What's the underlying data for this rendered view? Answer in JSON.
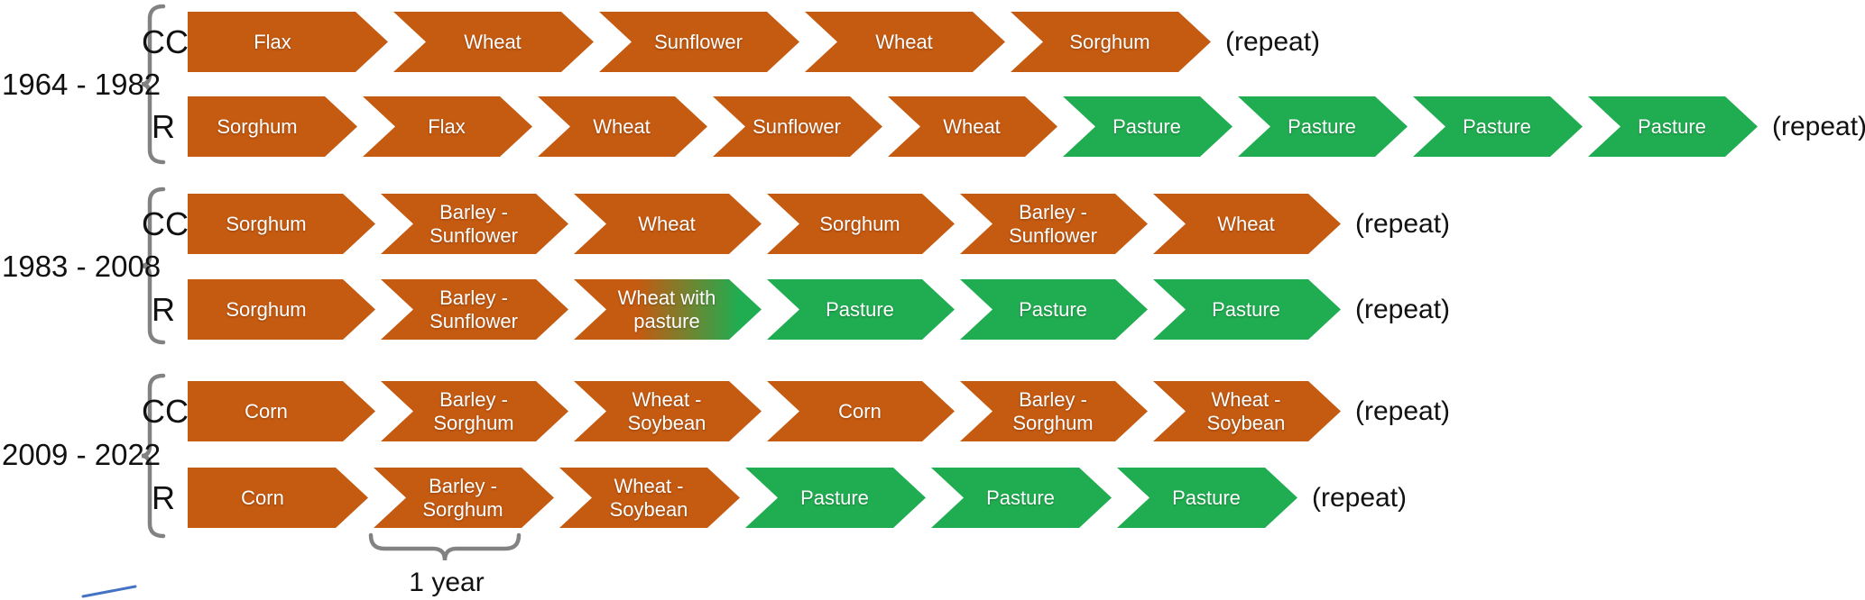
{
  "colors": {
    "crop": "#C55A11",
    "pasture": "#20AD51",
    "bracket": "#828282",
    "text_on_arrow": "#FFFFFF",
    "label_text": "#111111",
    "stray_mark": "#4472C4"
  },
  "annotation": {
    "label": "1 year"
  },
  "groups": [
    {
      "period": "1964 - 1982",
      "rows": [
        {
          "label": "CC",
          "repeat": "(repeat)",
          "segments": [
            {
              "text": "Flax",
              "type": "crop"
            },
            {
              "text": "Wheat",
              "type": "crop"
            },
            {
              "text": "Sunflower",
              "type": "crop"
            },
            {
              "text": "Wheat",
              "type": "crop"
            },
            {
              "text": "Sorghum",
              "type": "crop"
            }
          ]
        },
        {
          "label": "R",
          "repeat": "(repeat)",
          "segments": [
            {
              "text": "Sorghum",
              "type": "crop"
            },
            {
              "text": "Flax",
              "type": "crop"
            },
            {
              "text": "Wheat",
              "type": "crop"
            },
            {
              "text": "Sunflower",
              "type": "crop"
            },
            {
              "text": "Wheat",
              "type": "crop"
            },
            {
              "text": "Pasture",
              "type": "pasture"
            },
            {
              "text": "Pasture",
              "type": "pasture"
            },
            {
              "text": "Pasture",
              "type": "pasture"
            },
            {
              "text": "Pasture",
              "type": "pasture"
            }
          ]
        }
      ]
    },
    {
      "period": "1983 - 2008",
      "rows": [
        {
          "label": "CC",
          "repeat": "(repeat)",
          "segments": [
            {
              "text": "Sorghum",
              "type": "crop"
            },
            {
              "text": "Barley - Sunflower",
              "type": "crop"
            },
            {
              "text": "Wheat",
              "type": "crop"
            },
            {
              "text": "Sorghum",
              "type": "crop"
            },
            {
              "text": "Barley - Sunflower",
              "type": "crop"
            },
            {
              "text": "Wheat",
              "type": "crop"
            }
          ]
        },
        {
          "label": "R",
          "repeat": "(repeat)",
          "segments": [
            {
              "text": "Sorghum",
              "type": "crop"
            },
            {
              "text": "Barley - Sunflower",
              "type": "crop"
            },
            {
              "text": "Wheat with pasture",
              "type": "transition"
            },
            {
              "text": "Pasture",
              "type": "pasture"
            },
            {
              "text": "Pasture",
              "type": "pasture"
            },
            {
              "text": "Pasture",
              "type": "pasture"
            }
          ]
        }
      ]
    },
    {
      "period": "2009 - 2022",
      "rows": [
        {
          "label": "CC",
          "repeat": "(repeat)",
          "segments": [
            {
              "text": "Corn",
              "type": "crop"
            },
            {
              "text": "Barley - Sorghum",
              "type": "crop"
            },
            {
              "text": "Wheat - Soybean",
              "type": "crop"
            },
            {
              "text": "Corn",
              "type": "crop"
            },
            {
              "text": "Barley - Sorghum",
              "type": "crop"
            },
            {
              "text": "Wheat - Soybean",
              "type": "crop"
            }
          ]
        },
        {
          "label": "R",
          "repeat": "(repeat)",
          "segments": [
            {
              "text": "Corn",
              "type": "crop"
            },
            {
              "text": "Barley - Sorghum",
              "type": "crop"
            },
            {
              "text": "Wheat - Soybean",
              "type": "crop"
            },
            {
              "text": "Pasture",
              "type": "pasture"
            },
            {
              "text": "Pasture",
              "type": "pasture"
            },
            {
              "text": "Pasture",
              "type": "pasture"
            }
          ]
        }
      ]
    }
  ]
}
